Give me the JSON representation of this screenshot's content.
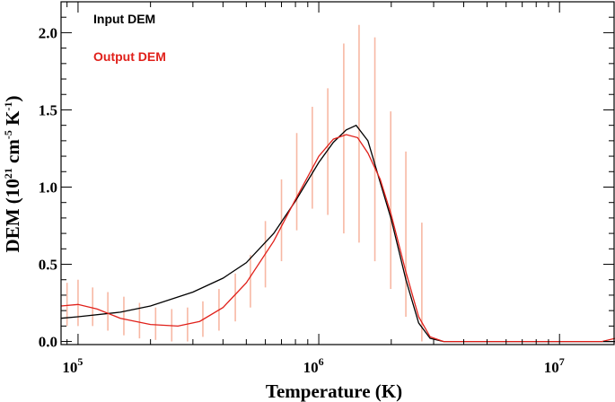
{
  "chart_data": {
    "type": "line",
    "title": "",
    "xlabel": "Temperature (K)",
    "ylabel": "DEM (10²¹ cm⁻⁵ K⁻¹)",
    "ylabel_parts": {
      "prefix": "DEM (10",
      "exp1": "21",
      "mid": " cm",
      "exp2": "-5",
      "mid2": " K",
      "exp3": "-1",
      "suffix": ")"
    },
    "xscale": "log",
    "xlim": [
      85000,
      17000000
    ],
    "ylim": [
      -0.02,
      2.2
    ],
    "x_ticks": [
      {
        "value": 100000,
        "base": "10",
        "exp": "5"
      },
      {
        "value": 1000000,
        "base": "10",
        "exp": "6"
      },
      {
        "value": 10000000,
        "base": "10",
        "exp": "7"
      }
    ],
    "y_ticks": [
      {
        "value": 0.0,
        "label": "0.0"
      },
      {
        "value": 0.5,
        "label": "0.5"
      },
      {
        "value": 1.0,
        "label": "1.0"
      },
      {
        "value": 1.5,
        "label": "1.5"
      },
      {
        "value": 2.0,
        "label": "2.0"
      }
    ],
    "legend_position": "top-left",
    "series": [
      {
        "name": "Input DEM",
        "color": "#000000",
        "x": [
          85000,
          100000,
          150000,
          200000,
          300000,
          400000,
          500000,
          650000,
          800000,
          1000000,
          1150000,
          1300000,
          1430000,
          1600000,
          1800000,
          2000000,
          2300000,
          2600000,
          2900000,
          3300000,
          3600000,
          5000000,
          10000000,
          15000000,
          17000000
        ],
        "y": [
          0.15,
          0.16,
          0.19,
          0.23,
          0.32,
          0.41,
          0.51,
          0.7,
          0.91,
          1.16,
          1.29,
          1.37,
          1.4,
          1.3,
          1.03,
          0.79,
          0.4,
          0.12,
          0.02,
          0.0,
          0.0,
          0.0,
          0.0,
          0.0,
          0.0
        ]
      },
      {
        "name": "Output DEM",
        "color": "#e0201a",
        "x": [
          85000,
          100000,
          120000,
          150000,
          200000,
          260000,
          320000,
          400000,
          500000,
          650000,
          800000,
          1000000,
          1150000,
          1300000,
          1450000,
          1600000,
          1800000,
          2000000,
          2300000,
          2600000,
          2900000,
          3300000,
          3600000,
          5000000,
          10000000,
          15000000,
          17000000
        ],
        "y": [
          0.23,
          0.24,
          0.21,
          0.15,
          0.11,
          0.1,
          0.13,
          0.22,
          0.38,
          0.65,
          0.92,
          1.2,
          1.31,
          1.34,
          1.32,
          1.22,
          1.05,
          0.82,
          0.45,
          0.16,
          0.03,
          0.0,
          0.0,
          0.0,
          0.0,
          0.0,
          0.02
        ]
      }
    ],
    "error_bars": {
      "color": "#f7b8a4",
      "x": [
        90000,
        100000,
        115000,
        133000,
        155000,
        180000,
        210000,
        245000,
        285000,
        330000,
        385000,
        450000,
        520000,
        600000,
        700000,
        810000,
        940000,
        1090000,
        1270000,
        1470000,
        1710000,
        1990000,
        2300000,
        2680000
      ],
      "low": [
        0.1,
        0.1,
        0.1,
        0.07,
        0.04,
        0.02,
        0.01,
        0.0,
        0.0,
        0.03,
        0.07,
        0.13,
        0.22,
        0.35,
        0.52,
        0.72,
        0.86,
        0.82,
        0.7,
        0.64,
        0.52,
        0.34,
        0.16,
        0.0
      ],
      "high": [
        0.38,
        0.4,
        0.35,
        0.32,
        0.29,
        0.25,
        0.22,
        0.21,
        0.22,
        0.26,
        0.34,
        0.44,
        0.56,
        0.78,
        1.05,
        1.35,
        1.52,
        1.64,
        1.93,
        2.05,
        1.97,
        1.49,
        1.23,
        0.77
      ]
    }
  }
}
